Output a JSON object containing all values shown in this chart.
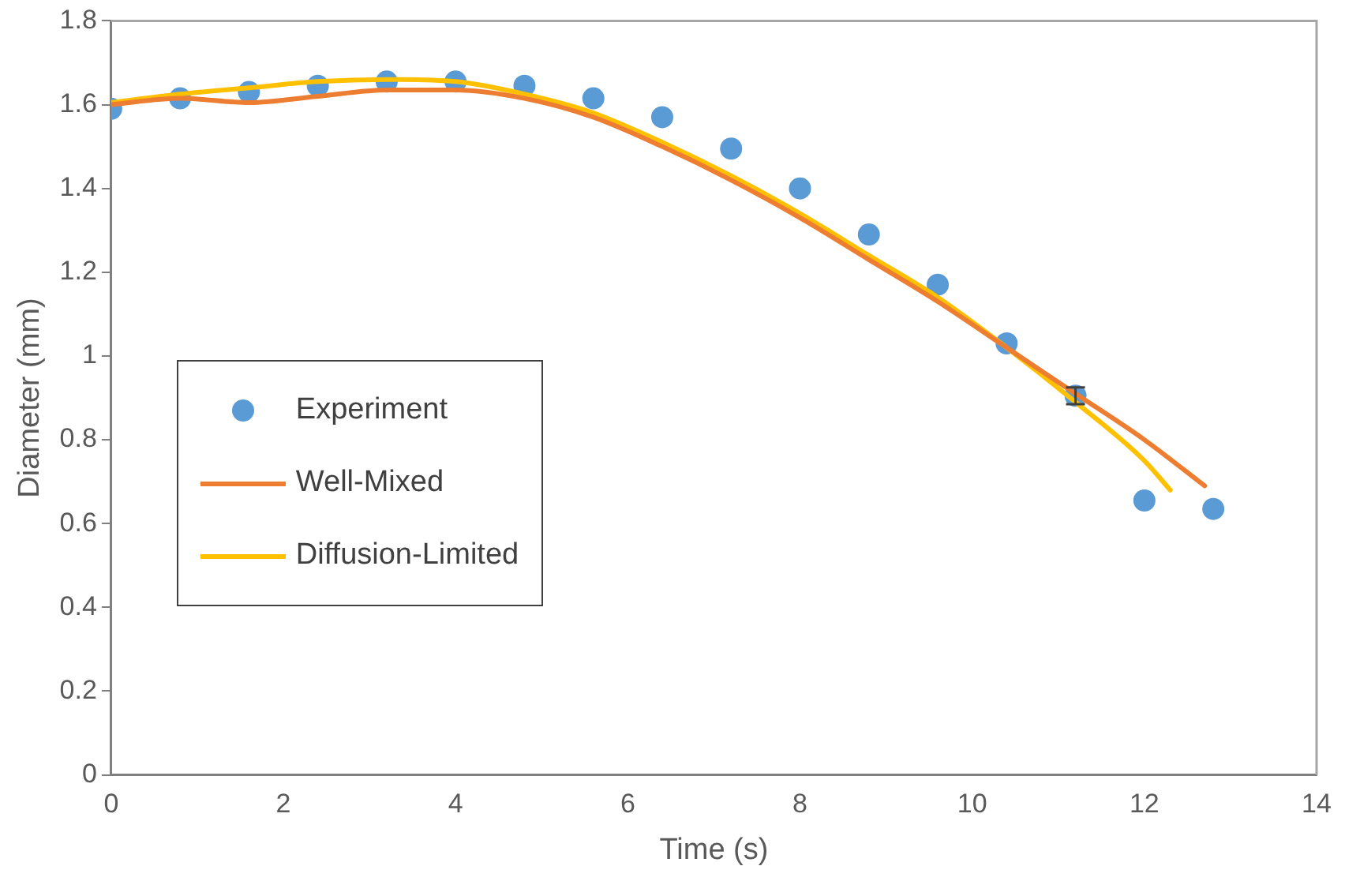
{
  "chart_data": {
    "type": "scatter",
    "xlabel": "Time (s)",
    "ylabel": "Diameter (mm)",
    "xlim": [
      0,
      14
    ],
    "xticks": [
      0,
      2,
      4,
      6,
      8,
      10,
      12,
      14
    ],
    "ylim": [
      0,
      1.8
    ],
    "yticks": [
      0,
      0.2,
      0.4,
      0.6,
      0.8,
      1,
      1.2,
      1.4,
      1.6,
      1.8
    ],
    "grid": false,
    "legend": "left",
    "line_style": "solid",
    "series": [
      {
        "name": "Experiment",
        "marker": "circle",
        "color": "#5b9bd5",
        "x": [
          0,
          0.8,
          1.6,
          2.4,
          3.2,
          4.0,
          4.8,
          5.6,
          6.4,
          7.2,
          8.0,
          8.8,
          9.6,
          10.4,
          11.2,
          12.0,
          12.8
        ],
        "values": [
          1.59,
          1.615,
          1.63,
          1.645,
          1.655,
          1.655,
          1.645,
          1.615,
          1.57,
          1.495,
          1.4,
          1.29,
          1.17,
          1.03,
          0.905,
          0.655,
          0.635
        ],
        "errors": [
          null,
          null,
          null,
          null,
          null,
          null,
          null,
          null,
          null,
          null,
          null,
          null,
          null,
          null,
          0.02,
          null,
          null
        ]
      },
      {
        "name": "Well-Mixed",
        "type": "line",
        "marker": "none",
        "color": "#ed7d31",
        "x": [
          0,
          0.8,
          1.6,
          2.4,
          3.2,
          4.0,
          4.8,
          5.6,
          6.4,
          7.2,
          8.0,
          8.8,
          9.6,
          10.4,
          11.2,
          12.0,
          12.7
        ],
        "values": [
          1.6,
          1.615,
          1.605,
          1.62,
          1.635,
          1.635,
          1.615,
          1.57,
          1.5,
          1.42,
          1.33,
          1.23,
          1.13,
          1.02,
          0.91,
          0.8,
          0.69
        ]
      },
      {
        "name": "Diffusion-Limited",
        "type": "line",
        "marker": "none",
        "color": "#ffc000",
        "x": [
          0,
          0.8,
          1.6,
          2.4,
          3.2,
          4.0,
          4.8,
          5.6,
          6.4,
          7.2,
          8.0,
          8.8,
          9.6,
          10.4,
          11.2,
          12.0,
          12.3
        ],
        "values": [
          1.605,
          1.625,
          1.64,
          1.655,
          1.66,
          1.655,
          1.625,
          1.58,
          1.51,
          1.43,
          1.34,
          1.24,
          1.14,
          1.02,
          0.89,
          0.75,
          0.68
        ]
      }
    ]
  }
}
